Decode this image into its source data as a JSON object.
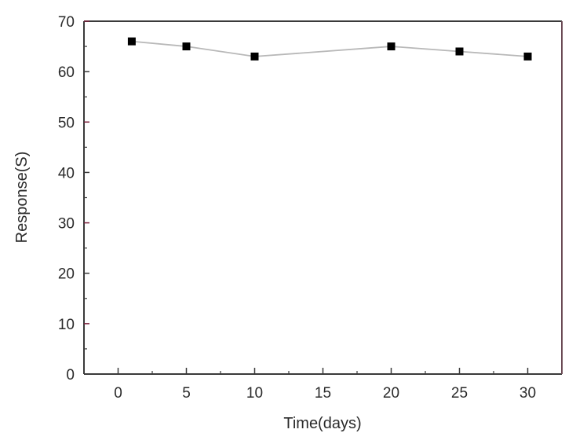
{
  "chart_data": {
    "type": "line",
    "title": "",
    "xlabel": "Time(days)",
    "ylabel": "Response(S)",
    "xlim": [
      -2.5,
      32.5
    ],
    "ylim": [
      0,
      70
    ],
    "x_ticks": [
      0,
      5,
      10,
      15,
      20,
      25,
      30
    ],
    "y_ticks": [
      0,
      10,
      20,
      30,
      40,
      50,
      60,
      70
    ],
    "grid": false,
    "legend": null,
    "series": [
      {
        "name": "Response",
        "marker": "square",
        "marker_color": "#000000",
        "line_color": "#b8b8b8",
        "x": [
          1,
          5,
          10,
          20,
          25,
          30
        ],
        "values": [
          66,
          65,
          63,
          65,
          64,
          63
        ]
      }
    ]
  },
  "colors": {
    "frame": "#3a3a3a",
    "frame_right": "#6b4a55",
    "tick_accent": "#7a1f3a"
  }
}
